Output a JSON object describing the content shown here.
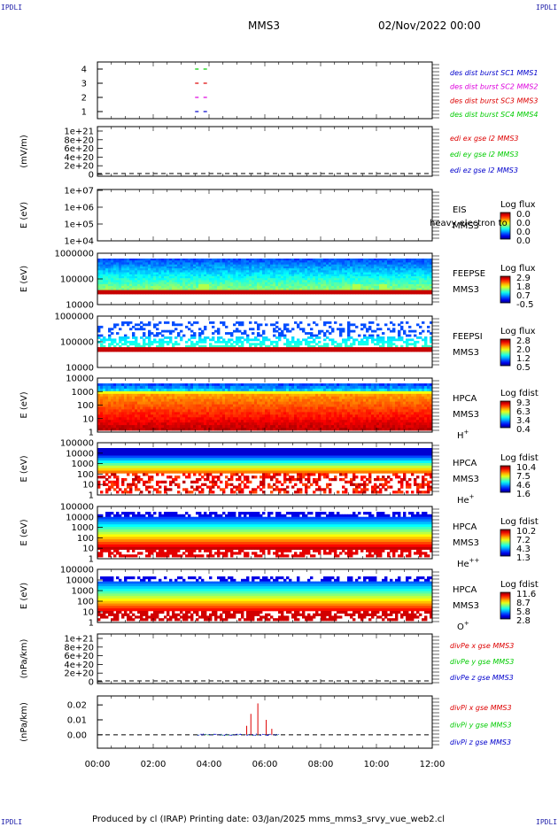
{
  "corners": {
    "tl": "IPDLI",
    "tr": "IPDLI",
    "bl": "IPDLI",
    "br": "IPDLI"
  },
  "header": {
    "spacecraft": "MMS3",
    "datetime": "02/Nov/2022 00:00"
  },
  "footer": {
    "text": "Produced by cl (IRAP)   Printing date: 03/Jan/2025   mms_mms3_srvy_vue_web2.cl"
  },
  "colors": {
    "red": "#dd0000",
    "magenta": "#dd00dd",
    "green": "#00cc00",
    "blue": "#0000cc"
  },
  "chart_data": [
    {
      "type": "scatter",
      "id": "burst",
      "ylim": [
        0.5,
        4.5
      ],
      "yticks": [
        "1",
        "2",
        "3",
        "4"
      ],
      "legend": [
        {
          "text": "des dist burst SC1 MMS1",
          "color": "#0000cc"
        },
        {
          "text": "des dist burst SC2 MMS2",
          "color": "#dd00dd"
        },
        {
          "text": "des dist burst SC3 MMS3",
          "color": "#dd0000"
        },
        {
          "text": "des dist burst SC4 MMS4",
          "color": "#00cc00"
        }
      ],
      "series": [
        {
          "name": "des dist burst SC1 MMS1",
          "y": 1,
          "x": [
            3.5,
            3.8
          ]
        },
        {
          "name": "des dist burst SC2 MMS2",
          "y": 2,
          "x": [
            3.5,
            3.8
          ]
        },
        {
          "name": "des dist burst SC3 MMS3",
          "y": 3,
          "x": [
            3.5,
            3.8
          ]
        },
        {
          "name": "des dist burst SC4 MMS4",
          "y": 4,
          "x": [
            3.5,
            3.8
          ]
        }
      ]
    },
    {
      "type": "line",
      "id": "edi",
      "ylabel": "(mV/m)",
      "yticks": [
        "1e+21",
        "8e+20",
        "6e+20",
        "4e+20",
        "2e+20",
        "0"
      ],
      "legend": [
        {
          "text": "edi ex gse l2 MMS3",
          "color": "#dd0000"
        },
        {
          "text": "edi ey gse l2 MMS3",
          "color": "#00cc00"
        },
        {
          "text": "edi ez gse l2 MMS3",
          "color": "#0000cc"
        }
      ]
    },
    {
      "type": "heatmap",
      "id": "eis",
      "ylabel": "E (eV)",
      "yticks": [
        "1e+07",
        "1e+06",
        "1e+05",
        "1e+04"
      ],
      "labels": [
        "EIS",
        "MMS3"
      ],
      "overlay": "heavy electron to",
      "cbar_title": "Log flux",
      "cbar_ticks": [
        "0.0",
        "0.0",
        "0.0",
        "0.0"
      ]
    },
    {
      "type": "heatmap",
      "id": "feepse",
      "ylabel": "E (eV)",
      "yticks": [
        "1000000",
        "100000",
        "10000"
      ],
      "labels": [
        "FEEPSE",
        "MMS3"
      ],
      "cbar_title": "Log flux",
      "cbar_ticks": [
        "2.9",
        "1.8",
        "0.7",
        "-0.5"
      ]
    },
    {
      "type": "heatmap",
      "id": "feepsi",
      "yticks": [
        "1000000",
        "100000",
        "10000"
      ],
      "labels": [
        "FEEPSI",
        "MMS3"
      ],
      "cbar_title": "Log flux",
      "cbar_ticks": [
        "2.8",
        "2.0",
        "1.2",
        "0.5"
      ]
    },
    {
      "type": "heatmap",
      "id": "hpca-h",
      "ylabel": "E (eV)",
      "yticks": [
        "10000",
        "1000",
        "100",
        "10",
        "1"
      ],
      "labels": [
        "HPCA",
        "MMS3",
        "H+"
      ],
      "cbar_title": "Log fdist",
      "cbar_ticks": [
        "9.3",
        "6.3",
        "3.4",
        "0.4"
      ]
    },
    {
      "type": "heatmap",
      "id": "hpca-he1",
      "ylabel": "E (eV)",
      "yticks": [
        "100000",
        "10000",
        "1000",
        "100",
        "10",
        "1"
      ],
      "labels": [
        "HPCA",
        "MMS3",
        "He+"
      ],
      "cbar_title": "Log fdist",
      "cbar_ticks": [
        "10.4",
        "7.5",
        "4.6",
        "1.6"
      ]
    },
    {
      "type": "heatmap",
      "id": "hpca-he2",
      "ylabel": "E (eV)",
      "yticks": [
        "100000",
        "10000",
        "1000",
        "100",
        "10",
        "1"
      ],
      "labels": [
        "HPCA",
        "MMS3",
        "He++"
      ],
      "cbar_title": "Log fdist",
      "cbar_ticks": [
        "10.2",
        "7.2",
        "4.3",
        "1.3"
      ]
    },
    {
      "type": "heatmap",
      "id": "hpca-o",
      "ylabel": "E (eV)",
      "yticks": [
        "100000",
        "10000",
        "1000",
        "100",
        "10",
        "1"
      ],
      "labels": [
        "HPCA",
        "MMS3",
        "O+"
      ],
      "cbar_title": "Log fdist",
      "cbar_ticks": [
        "11.6",
        "8.7",
        "5.8",
        "2.8"
      ]
    },
    {
      "type": "line",
      "id": "divpe",
      "ylabel": "(nPa/km)",
      "yticks": [
        "1e+21",
        "8e+20",
        "6e+20",
        "4e+20",
        "2e+20",
        "0"
      ],
      "legend": [
        {
          "text": "divPe x gse MMS3",
          "color": "#dd0000"
        },
        {
          "text": "divPe y gse MMS3",
          "color": "#00cc00"
        },
        {
          "text": "divPe z gse MMS3",
          "color": "#0000cc"
        }
      ]
    },
    {
      "type": "line",
      "id": "divpi",
      "ylabel": "(nPa/km)",
      "ylim": [
        -0.009,
        0.026
      ],
      "yticks": [
        "0.02",
        "0.01",
        "0.00"
      ],
      "legend": [
        {
          "text": "divPi x gse MMS3",
          "color": "#dd0000"
        },
        {
          "text": "divPi y gse MMS3",
          "color": "#00cc00"
        },
        {
          "text": "divPi z gse MMS3",
          "color": "#0000cc"
        }
      ],
      "x_range": [
        3.6,
        6.5
      ],
      "spikes": [
        {
          "x": 5.75,
          "y": 0.021
        },
        {
          "x": 5.5,
          "y": 0.014
        },
        {
          "x": 6.05,
          "y": 0.01
        },
        {
          "x": 5.35,
          "y": 0.006
        },
        {
          "x": 6.25,
          "y": 0.004
        }
      ]
    }
  ],
  "xaxis": {
    "ticks": [
      "00:00",
      "02:00",
      "04:00",
      "06:00",
      "08:00",
      "10:00",
      "12:00"
    ],
    "range": [
      0,
      12
    ]
  }
}
